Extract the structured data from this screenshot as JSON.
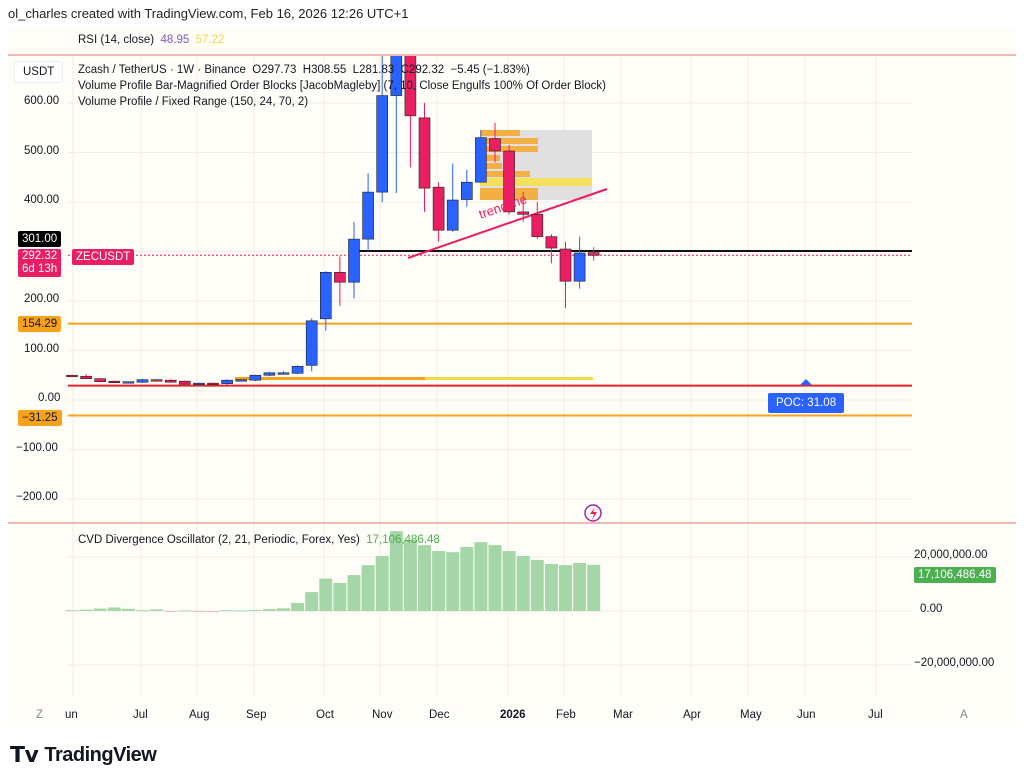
{
  "credit": "ol_charles created with TradingView.com, Feb 16, 2026 12:26 UTC+1",
  "rsi": {
    "label": "RSI (14, close)",
    "v1": "48.95",
    "v2": "57.22",
    "v1_color": "#7e57c2",
    "v2_color": "#f5d84a"
  },
  "currency": "USDT",
  "legend": {
    "symbol": "Zcash / TetherUS · 1W · Binance",
    "o": "O297.73",
    "h": "H308.55",
    "l": "L281.83",
    "c": "C292.32",
    "chg": "−5.45 (−1.83%)",
    "ind1": "Volume Profile Bar-Magnified Order Blocks [JacobMagleby] (7, 10, Close Engulfs 100% Of Order Block)",
    "ind2": "Volume Profile / Fixed Range (150, 24, 70, 2)"
  },
  "price_axis": [
    "600.00",
    "500.00",
    "400.00",
    "200.00",
    "100.00",
    "0.00",
    "−100.00",
    "−200.00"
  ],
  "price_labels": {
    "line": "301.00",
    "last": "292.32",
    "ticker": "ZECUSDT",
    "countdown": "6d 13h",
    "orange1": "154.29",
    "orange2": "−31.25"
  },
  "poc": "POC: 31.08",
  "trendline": "trendline",
  "colors": {
    "up": "#2962ff",
    "down": "#e91e63",
    "orange": "#f7a21b",
    "red": "#e5222b",
    "cvd": "#a5d6a7",
    "cvd_label": "#4caf50"
  },
  "candles": [
    [
      50,
      51,
      47,
      48
    ],
    [
      48,
      52,
      42,
      43
    ],
    [
      43,
      44,
      36,
      37
    ],
    [
      38,
      39,
      35,
      36
    ],
    [
      36,
      37,
      35,
      37
    ],
    [
      36,
      43,
      34,
      41
    ],
    [
      41,
      42,
      38,
      39
    ],
    [
      40,
      42,
      35,
      36
    ],
    [
      38,
      39,
      31,
      32
    ],
    [
      32,
      35,
      31,
      34
    ],
    [
      34,
      35,
      32,
      33
    ],
    [
      33,
      42,
      30,
      40
    ],
    [
      40,
      42,
      38,
      41
    ],
    [
      40,
      51,
      38,
      50
    ],
    [
      50,
      57,
      48,
      55
    ],
    [
      55,
      58,
      53,
      55
    ],
    [
      54,
      70,
      52,
      68
    ],
    [
      70,
      165,
      58,
      160
    ],
    [
      164,
      260,
      140,
      258
    ],
    [
      258,
      290,
      190,
      238
    ],
    [
      238,
      360,
      205,
      325
    ],
    [
      325,
      458,
      300,
      420
    ],
    [
      420,
      700,
      400,
      615
    ],
    [
      615,
      760,
      418,
      740
    ],
    [
      740,
      760,
      470,
      574
    ],
    [
      570,
      600,
      380,
      428
    ],
    [
      430,
      440,
      320,
      343
    ],
    [
      343,
      478,
      340,
      404
    ],
    [
      405,
      465,
      390,
      440
    ],
    [
      440,
      545,
      440,
      530
    ],
    [
      528,
      560,
      480,
      503
    ],
    [
      503,
      515,
      375,
      380
    ],
    [
      380,
      420,
      360,
      375
    ],
    [
      375,
      400,
      325,
      330
    ],
    [
      330,
      335,
      276,
      307
    ],
    [
      305,
      320,
      186,
      240
    ],
    [
      240,
      330,
      225,
      297
    ],
    [
      297.73,
      308.55,
      281.83,
      292.32
    ]
  ],
  "cvd": {
    "label": "CVD Divergence Oscillator (2, 21, Periodic, Forex, Yes)",
    "value": "17,106,486.48",
    "axis": [
      "20,000,000.00",
      "0.00",
      "−20,000,000.00"
    ],
    "values": [
      0.3,
      0.5,
      0.9,
      1.3,
      0.8,
      0.3,
      0.6,
      -0.3,
      0.2,
      -0.3,
      -0.2,
      0.3,
      0.2,
      0.4,
      0.7,
      1.0,
      3.0,
      7.0,
      12.0,
      10.4,
      13.3,
      17.0,
      20.4,
      29.6,
      26.3,
      24.4,
      22.2,
      21.8,
      23.7,
      25.5,
      24.4,
      22.2,
      20.4,
      18.9,
      17.4,
      17.0,
      17.8,
      17.1
    ]
  },
  "time_axis": [
    "un",
    "Jul",
    "Aug",
    "Sep",
    "Oct",
    "Nov",
    "Dec",
    "2026",
    "Feb",
    "Mar",
    "Apr",
    "May",
    "Jun",
    "Jul"
  ],
  "axis_buttons": {
    "left": "Z",
    "right": "A"
  },
  "logo": "TradingView"
}
